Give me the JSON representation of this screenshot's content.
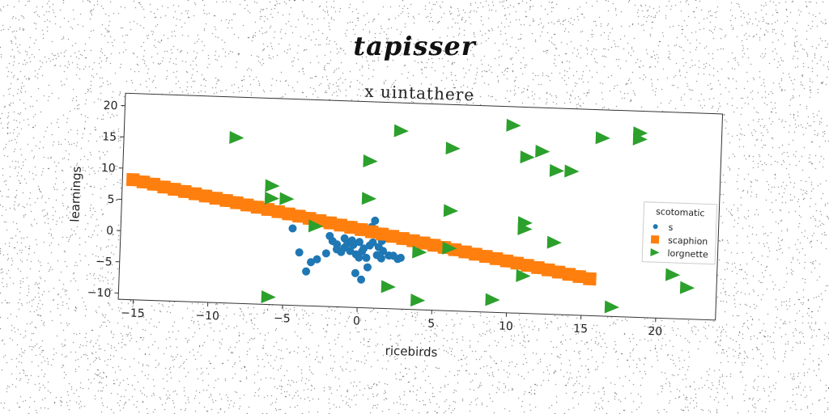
{
  "title": "tapisser",
  "chart_data": {
    "type": "scatter",
    "title": "x uintathere",
    "xlabel": "ricebirds",
    "ylabel": "learnings",
    "xlim": [
      -16,
      24
    ],
    "ylim": [
      -11,
      22
    ],
    "xticks": [
      "−15",
      "−10",
      "−5",
      "0",
      "5",
      "10",
      "15",
      "20"
    ],
    "yticks": [
      "−10",
      "−5",
      "0",
      "5",
      "10",
      "15",
      "20"
    ],
    "grid": false,
    "legend": {
      "title": "scotomatic",
      "placement": "center-right"
    },
    "series": [
      {
        "name": "s",
        "marker": "circle",
        "color": "#1f77b4",
        "points": [
          [
            -4.5,
            1.3
          ],
          [
            -4.0,
            -2.5
          ],
          [
            -3.5,
            -5.5
          ],
          [
            -3.2,
            -4.0
          ],
          [
            -2.8,
            -3.5
          ],
          [
            -2.2,
            -2.5
          ],
          [
            -2.0,
            0.3
          ],
          [
            -1.8,
            -0.5
          ],
          [
            -1.5,
            -1.0
          ],
          [
            -1.5,
            -1.8
          ],
          [
            -1.2,
            -2.2
          ],
          [
            -1.0,
            0.0
          ],
          [
            -1.0,
            -1.5
          ],
          [
            -0.8,
            -0.8
          ],
          [
            -0.6,
            -2.0
          ],
          [
            -0.5,
            -0.3
          ],
          [
            -0.4,
            -1.0
          ],
          [
            -0.2,
            -2.5
          ],
          [
            0.0,
            -0.5
          ],
          [
            0.0,
            -3.0
          ],
          [
            0.2,
            -2.0
          ],
          [
            0.3,
            -1.5
          ],
          [
            0.5,
            -3.0
          ],
          [
            0.6,
            -4.5
          ],
          [
            0.7,
            -1.0
          ],
          [
            0.8,
            2.0
          ],
          [
            0.9,
            -0.5
          ],
          [
            1.0,
            3.0
          ],
          [
            1.2,
            -2.5
          ],
          [
            1.3,
            -1.2
          ],
          [
            1.5,
            -3.0
          ],
          [
            1.6,
            -1.8
          ],
          [
            1.8,
            1.0
          ],
          [
            2.0,
            -2.5
          ],
          [
            2.3,
            -2.5
          ],
          [
            2.6,
            -3.0
          ],
          [
            0.2,
            -6.5
          ],
          [
            -0.2,
            -5.5
          ],
          [
            2.8,
            -2.8
          ],
          [
            1.5,
            -0.2
          ]
        ]
      },
      {
        "name": "scaphion",
        "marker": "square",
        "color": "#ff7f0e",
        "points": [
          [
            -15.3,
            8.2
          ],
          [
            -14.6,
            7.9
          ],
          [
            -13.9,
            7.6
          ],
          [
            -13.2,
            7.2
          ],
          [
            -12.5,
            6.9
          ],
          [
            -11.8,
            6.6
          ],
          [
            -11.1,
            6.3
          ],
          [
            -10.4,
            6.0
          ],
          [
            -9.7,
            5.7
          ],
          [
            -9.0,
            5.4
          ],
          [
            -8.3,
            5.1
          ],
          [
            -7.6,
            4.8
          ],
          [
            -6.9,
            4.5
          ],
          [
            -6.2,
            4.2
          ],
          [
            -5.5,
            3.9
          ],
          [
            -4.8,
            3.6
          ],
          [
            -4.1,
            3.3
          ],
          [
            -3.4,
            3.0
          ],
          [
            -2.7,
            2.7
          ],
          [
            -2.0,
            2.4
          ],
          [
            -1.3,
            2.1
          ],
          [
            -0.6,
            1.8
          ],
          [
            0.1,
            1.5
          ],
          [
            0.8,
            1.2
          ],
          [
            1.5,
            0.9
          ],
          [
            2.2,
            0.6
          ],
          [
            2.9,
            0.3
          ],
          [
            3.6,
            0.0
          ],
          [
            4.3,
            -0.3
          ],
          [
            5.0,
            -0.6
          ],
          [
            5.7,
            -0.9
          ],
          [
            6.4,
            -1.2
          ],
          [
            7.1,
            -1.5
          ],
          [
            7.8,
            -1.8
          ],
          [
            8.5,
            -2.1
          ],
          [
            9.2,
            -2.4
          ],
          [
            9.9,
            -2.7
          ],
          [
            10.6,
            -3.0
          ],
          [
            11.3,
            -3.3
          ],
          [
            12.0,
            -3.6
          ],
          [
            12.7,
            -3.9
          ],
          [
            13.4,
            -4.2
          ],
          [
            14.1,
            -4.5
          ],
          [
            14.8,
            -4.8
          ],
          [
            15.5,
            -5.1
          ]
        ]
      },
      {
        "name": "lorgnette",
        "marker": "triangle-right",
        "color": "#2ca02c",
        "points": [
          [
            -8.5,
            15.5
          ],
          [
            -6.0,
            8.0
          ],
          [
            -6.0,
            6.0
          ],
          [
            -5.0,
            6.0
          ],
          [
            -3.0,
            1.8
          ],
          [
            -6.0,
            -9.8
          ],
          [
            0.5,
            12.5
          ],
          [
            0.5,
            6.5
          ],
          [
            2.5,
            17.5
          ],
          [
            4.0,
            -1.8
          ],
          [
            4.0,
            -9.5
          ],
          [
            2.0,
            -7.5
          ],
          [
            6.0,
            15.0
          ],
          [
            6.0,
            5.0
          ],
          [
            6.0,
            -1.0
          ],
          [
            10.0,
            19.0
          ],
          [
            11.0,
            14.0
          ],
          [
            12.0,
            15.0
          ],
          [
            11.0,
            3.5
          ],
          [
            11.0,
            2.5
          ],
          [
            13.0,
            0.5
          ],
          [
            13.0,
            12.0
          ],
          [
            14.0,
            12.0
          ],
          [
            16.0,
            17.5
          ],
          [
            18.5,
            18.5
          ],
          [
            18.5,
            17.5
          ],
          [
            21.0,
            -4.0
          ],
          [
            22.0,
            -6.0
          ],
          [
            17.0,
            -9.5
          ],
          [
            9.0,
            -9.0
          ],
          [
            11.0,
            -5.0
          ]
        ]
      }
    ]
  }
}
